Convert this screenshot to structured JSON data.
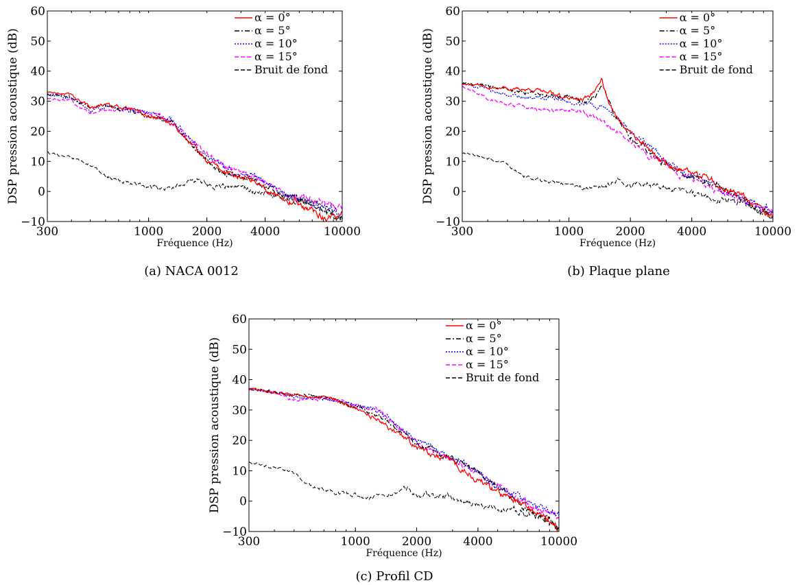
{
  "chart_data": [
    {
      "type": "line",
      "caption": "(a)  NACA 0012",
      "xscale": "log",
      "xlim": [
        300,
        10000
      ],
      "ylim": [
        -10,
        60
      ],
      "xticks": [
        300,
        1000,
        2000,
        4000,
        10000
      ],
      "yticks": [
        -10,
        0,
        10,
        20,
        30,
        40,
        50,
        60
      ],
      "xlabel": "Fréquence (Hz)",
      "ylabel": "DSP pression acoustique (dB)",
      "legend_position": "top-right",
      "grid": false,
      "series": [
        {
          "name": "α = 0°",
          "color": "#ff0000",
          "dash": "solid",
          "x": [
            300,
            400,
            500,
            600,
            800,
            1000,
            1300,
            1600,
            2000,
            2500,
            3000,
            3500,
            4000,
            5000,
            6000,
            7000,
            8000,
            10000
          ],
          "y": [
            33,
            32,
            28,
            29,
            27,
            25,
            23,
            17,
            10,
            6,
            5,
            4,
            1,
            -2,
            -4,
            -6,
            -8,
            -9
          ]
        },
        {
          "name": "α = 5°",
          "color": "#000000",
          "dash": "dashdot",
          "x": [
            300,
            400,
            500,
            600,
            800,
            1000,
            1300,
            1600,
            2000,
            2500,
            3000,
            3500,
            4000,
            5000,
            6000,
            7000,
            8000,
            10000
          ],
          "y": [
            32.5,
            31.5,
            28,
            28.5,
            26.5,
            25,
            23,
            17,
            10,
            6,
            5,
            4,
            1,
            -2,
            -3,
            -5,
            -6,
            -8
          ]
        },
        {
          "name": "α = 10°",
          "color": "#0000ff",
          "dash": "dotted",
          "x": [
            300,
            400,
            500,
            600,
            800,
            1000,
            1300,
            1600,
            2000,
            2500,
            3000,
            3500,
            4000,
            5000,
            6000,
            7000,
            8000,
            10000
          ],
          "y": [
            32,
            31,
            27,
            28,
            27,
            26,
            24,
            18,
            11,
            8,
            6,
            5,
            3,
            -1,
            -2,
            -4,
            -5,
            -7
          ]
        },
        {
          "name": "α = 15°",
          "color": "#ff00ff",
          "dash": "dashed",
          "x": [
            300,
            400,
            500,
            600,
            800,
            1000,
            1300,
            1600,
            2000,
            2500,
            3000,
            3500,
            4000,
            5000,
            6000,
            7000,
            8000,
            10000
          ],
          "y": [
            31,
            30,
            26,
            27,
            27,
            26,
            24,
            18,
            12,
            8,
            6,
            5,
            3,
            0,
            -2,
            -3,
            -4,
            -6
          ]
        },
        {
          "name": "Bruit de fond",
          "color": "#000000",
          "dash": "dashed",
          "x": [
            300,
            400,
            500,
            600,
            800,
            1000,
            1200,
            1500,
            1800,
            2000,
            2500,
            3000,
            4000,
            5000,
            6000,
            8000,
            10000
          ],
          "y": [
            13,
            11,
            9,
            5,
            3,
            2,
            1,
            2,
            4,
            2,
            2,
            1,
            -1,
            -2,
            -3,
            -5,
            -9
          ]
        }
      ]
    },
    {
      "type": "line",
      "caption": "(b)  Plaque plane",
      "xscale": "log",
      "xlim": [
        300,
        10000
      ],
      "ylim": [
        -10,
        60
      ],
      "xticks": [
        300,
        1000,
        2000,
        4000,
        10000
      ],
      "yticks": [
        -10,
        0,
        10,
        20,
        30,
        40,
        50,
        60
      ],
      "xlabel": "Fréquence (Hz)",
      "ylabel": "DSP pression acoustique (dB)",
      "legend_position": "top-right",
      "grid": false,
      "series": [
        {
          "name": "α = 0°",
          "color": "#ff0000",
          "dash": "solid",
          "x": [
            300,
            400,
            500,
            600,
            800,
            1000,
            1200,
            1350,
            1450,
            1550,
            1700,
            2000,
            2500,
            3000,
            3500,
            4000,
            5000,
            6000,
            7000,
            8000,
            10000
          ],
          "y": [
            36,
            35,
            34,
            34,
            33,
            31,
            31,
            33,
            38,
            30,
            25,
            19,
            14,
            9,
            7,
            6,
            4,
            0,
            -2,
            -4,
            -8
          ]
        },
        {
          "name": "α = 5°",
          "color": "#000000",
          "dash": "dashdot",
          "x": [
            300,
            400,
            500,
            600,
            800,
            1000,
            1200,
            1350,
            1450,
            1550,
            1700,
            2000,
            2500,
            3000,
            3500,
            4000,
            5000,
            6000,
            7000,
            8000,
            10000
          ],
          "y": [
            36,
            35,
            34,
            33,
            32,
            31,
            30,
            32,
            35,
            30,
            25,
            19,
            13,
            9,
            6,
            5,
            3,
            0,
            -3,
            -5,
            -8
          ]
        },
        {
          "name": "α = 10°",
          "color": "#0000ff",
          "dash": "dotted",
          "x": [
            300,
            400,
            500,
            600,
            800,
            1000,
            1200,
            1350,
            1450,
            1550,
            1700,
            2000,
            2500,
            3000,
            3500,
            4000,
            5000,
            6000,
            7000,
            8000,
            10000
          ],
          "y": [
            36,
            34,
            32,
            31,
            31,
            30,
            29,
            28,
            28,
            26,
            24,
            20,
            15,
            10,
            7,
            5,
            2,
            0,
            -2,
            -4,
            -7
          ]
        },
        {
          "name": "α = 15°",
          "color": "#ff00ff",
          "dash": "dashed",
          "x": [
            300,
            400,
            500,
            600,
            800,
            1000,
            1200,
            1350,
            1450,
            1550,
            1700,
            2000,
            2500,
            3000,
            3500,
            4000,
            5000,
            6000,
            7000,
            8000,
            10000
          ],
          "y": [
            35,
            31,
            29,
            28,
            27,
            27,
            26,
            25,
            24,
            22,
            20,
            17,
            12,
            9,
            6,
            4,
            1,
            -1,
            -3,
            -5,
            -8
          ]
        },
        {
          "name": "Bruit de fond",
          "color": "#000000",
          "dash": "dashed",
          "x": [
            300,
            400,
            500,
            600,
            800,
            1000,
            1200,
            1500,
            1800,
            2000,
            2500,
            3000,
            4000,
            5000,
            6000,
            8000,
            10000
          ],
          "y": [
            13,
            11,
            9,
            5,
            3,
            2,
            1,
            2,
            4,
            2,
            2,
            1,
            -1,
            -2,
            -3,
            -5,
            -9
          ]
        }
      ]
    },
    {
      "type": "line",
      "caption": "(c)  Profil CD",
      "xscale": "log",
      "xlim": [
        300,
        10000
      ],
      "ylim": [
        -10,
        60
      ],
      "xticks": [
        300,
        1000,
        2000,
        4000,
        10000
      ],
      "yticks": [
        -10,
        0,
        10,
        20,
        30,
        40,
        50,
        60
      ],
      "xlabel": "Fréquence (Hz)",
      "ylabel": "DSP pression acoustique (dB)",
      "legend_position": "top-right",
      "grid": false,
      "series": [
        {
          "name": "α = 0°",
          "color": "#ff0000",
          "dash": "solid",
          "x": [
            300,
            400,
            500,
            600,
            800,
            1000,
            1300,
            1600,
            2000,
            2500,
            3000,
            3500,
            4000,
            5000,
            6000,
            7000,
            8000,
            10000
          ],
          "y": [
            37,
            36,
            35,
            35,
            33,
            31,
            27,
            22,
            18,
            15,
            13,
            10,
            7,
            3,
            0,
            -2,
            -4,
            -9
          ]
        },
        {
          "name": "α = 5°",
          "color": "#000000",
          "dash": "dashdot",
          "x": [
            300,
            400,
            500,
            600,
            800,
            1000,
            1300,
            1600,
            2000,
            2500,
            3000,
            3500,
            4000,
            5000,
            6000,
            7000,
            8000,
            10000
          ],
          "y": [
            37,
            36,
            35,
            35,
            33,
            31,
            28,
            24,
            19,
            16,
            14,
            12,
            9,
            5,
            1,
            -2,
            -4,
            -8
          ]
        },
        {
          "name": "α = 10°",
          "color": "#0000ff",
          "dash": "dotted",
          "x": [
            300,
            400,
            500,
            600,
            800,
            1000,
            1300,
            1600,
            2000,
            2500,
            3000,
            3500,
            4000,
            5000,
            6000,
            7000,
            8000,
            10000
          ],
          "y": [
            37,
            36,
            34,
            34,
            33,
            32,
            30,
            25,
            20,
            17,
            14,
            12,
            9,
            5,
            2,
            -1,
            -2,
            -5
          ]
        },
        {
          "name": "α = 15°",
          "color": "#ff00ff",
          "dash": "dashed",
          "x": [
            300,
            400,
            500,
            600,
            800,
            1000,
            1300,
            1600,
            2000,
            2500,
            3000,
            3500,
            4000,
            5000,
            6000,
            7000,
            8000,
            10000
          ],
          "y": [
            37,
            36,
            33,
            34,
            33,
            32,
            30,
            25,
            20,
            16,
            13,
            11,
            9,
            5,
            1,
            -1,
            -3,
            -5
          ]
        },
        {
          "name": "Bruit de fond",
          "color": "#000000",
          "dash": "dashed",
          "x": [
            300,
            400,
            500,
            600,
            800,
            1000,
            1200,
            1500,
            1800,
            2000,
            2500,
            3000,
            4000,
            5000,
            6000,
            8000,
            10000
          ],
          "y": [
            13,
            11,
            9,
            5,
            3,
            2,
            1,
            2,
            4,
            2,
            2,
            1,
            -1,
            -2,
            -3,
            -5,
            -9
          ]
        }
      ]
    }
  ]
}
